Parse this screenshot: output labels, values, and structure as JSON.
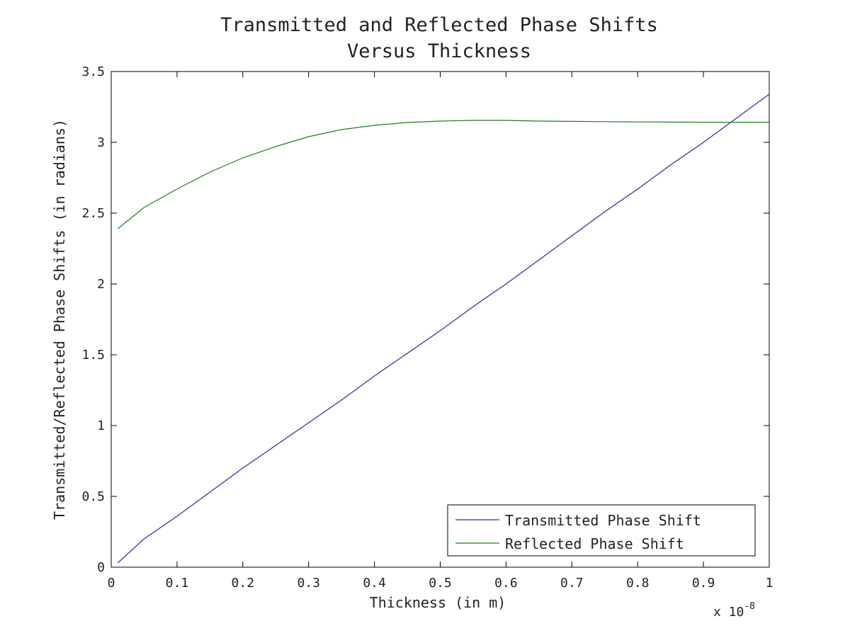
{
  "chart_data": {
    "type": "line",
    "title": [
      "Transmitted and Reflected Phase Shifts",
      "Versus Thickness"
    ],
    "xlabel": "Thickness (in m)",
    "ylabel": "Transmitted/Reflected Phase Shifts (in radians)",
    "x_multiplier": {
      "base": "x 10",
      "exponent": "-8"
    },
    "xlim": [
      0,
      1
    ],
    "ylim": [
      0,
      3.5
    ],
    "xticks": [
      0,
      0.1,
      0.2,
      0.3,
      0.4,
      0.5,
      0.6,
      0.7,
      0.8,
      0.9,
      1
    ],
    "xtick_labels": [
      "0",
      "0.1",
      "0.2",
      "0.3",
      "0.4",
      "0.5",
      "0.6",
      "0.7",
      "0.8",
      "0.9",
      "1"
    ],
    "yticks": [
      0,
      0.5,
      1,
      1.5,
      2,
      2.5,
      3,
      3.5
    ],
    "ytick_labels": [
      "0",
      "0.5",
      "1",
      "1.5",
      "2",
      "2.5",
      "3",
      "3.5"
    ],
    "grid": false,
    "legend_position": "bottom-right",
    "x": [
      0.01,
      0.05,
      0.1,
      0.15,
      0.2,
      0.25,
      0.3,
      0.35,
      0.4,
      0.45,
      0.5,
      0.55,
      0.6,
      0.65,
      0.7,
      0.75,
      0.8,
      0.85,
      0.9,
      0.95,
      1.0
    ],
    "series": [
      {
        "name": "Transmitted Phase Shift",
        "color": "#2a2aa8",
        "values": [
          0.03,
          0.2,
          0.36,
          0.53,
          0.7,
          0.86,
          1.02,
          1.18,
          1.35,
          1.51,
          1.67,
          1.84,
          2.0,
          2.17,
          2.34,
          2.51,
          2.67,
          2.84,
          3.0,
          3.17,
          3.34
        ]
      },
      {
        "name": "Reflected Phase Shift",
        "color": "#1e7e1e",
        "values": [
          2.39,
          2.54,
          2.67,
          2.79,
          2.89,
          2.97,
          3.04,
          3.09,
          3.12,
          3.14,
          3.15,
          3.155,
          3.155,
          3.15,
          3.148,
          3.146,
          3.144,
          3.143,
          3.142,
          3.142,
          3.142
        ]
      }
    ]
  }
}
